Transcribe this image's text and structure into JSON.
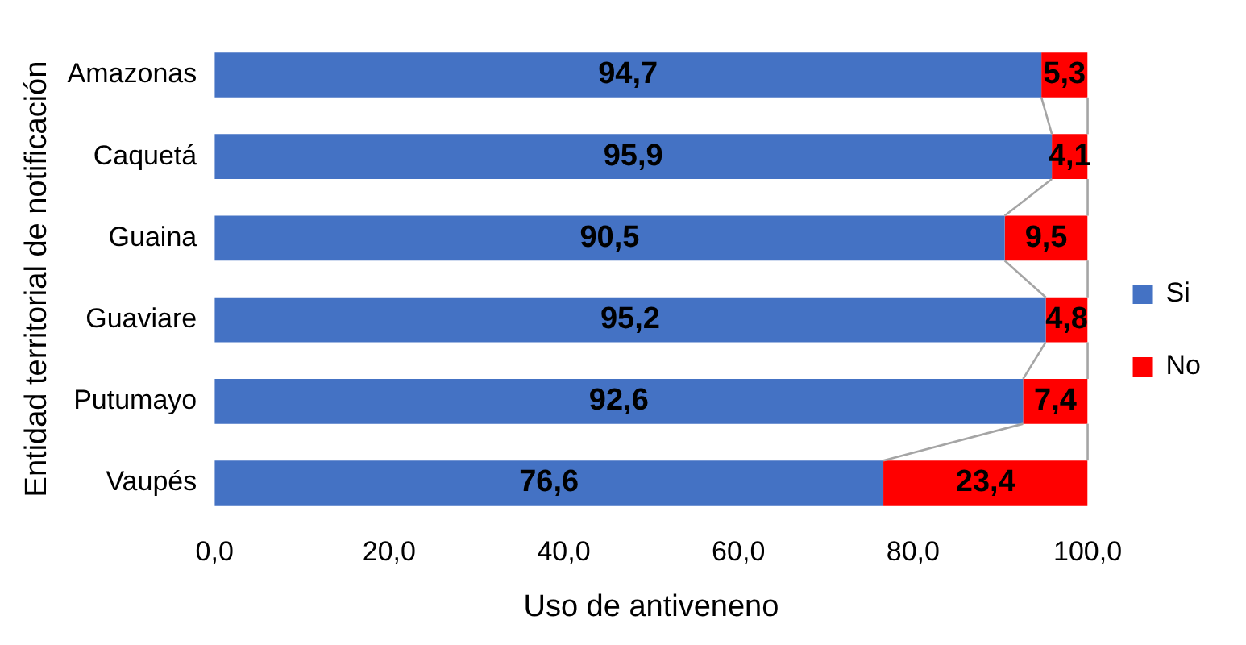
{
  "chart_data": {
    "type": "bar",
    "orientation": "horizontal",
    "stacked": true,
    "categories": [
      "Amazonas",
      "Caquetá",
      "Guaina",
      "Guaviare",
      "Putumayo",
      "Vaupés"
    ],
    "series": [
      {
        "name": "Si",
        "color": "#4472c4",
        "values": [
          94.7,
          95.9,
          90.5,
          95.2,
          92.6,
          76.6
        ],
        "value_labels": [
          "94,7",
          "95,9",
          "90,5",
          "95,2",
          "92,6",
          "76,6"
        ]
      },
      {
        "name": "No",
        "color": "#ff0000",
        "values": [
          5.3,
          4.1,
          9.5,
          4.8,
          7.4,
          23.4
        ],
        "value_labels": [
          "5,3",
          "4,1",
          "9,5",
          "4,8",
          "7,4",
          "23,4"
        ]
      }
    ],
    "xlim": [
      0,
      100
    ],
    "xticks": [
      {
        "value": 0,
        "label": "0,0"
      },
      {
        "value": 20,
        "label": "20,0"
      },
      {
        "value": 40,
        "label": "40,0"
      },
      {
        "value": 60,
        "label": "60,0"
      },
      {
        "value": 80,
        "label": "80,0"
      },
      {
        "value": 100,
        "label": "100,0"
      }
    ],
    "xlabel": "Uso de antiveneno",
    "ylabel": "Entidad territorial de notificación",
    "grid": false,
    "legend": "right"
  }
}
